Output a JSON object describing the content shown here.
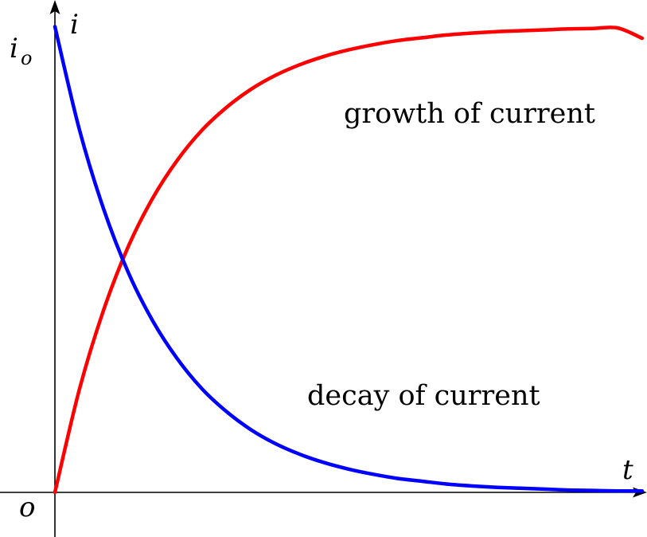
{
  "chart_data": {
    "type": "line",
    "title": "",
    "xlabel": "t",
    "ylabel": "i",
    "origin_label": "o",
    "y_max_label": {
      "main": "i",
      "sub": "o"
    },
    "xlim": [
      0,
      6.05
    ],
    "ylim": [
      0,
      1.04
    ],
    "grid": false,
    "legend": "none",
    "series": [
      {
        "name": "growth of current",
        "color": "#ff0000",
        "x": [
          0,
          0.25,
          0.5,
          0.75,
          1.0,
          1.25,
          1.5,
          1.75,
          2.0,
          2.25,
          2.5,
          2.75,
          3.0,
          3.25,
          3.5,
          3.75,
          4.0,
          4.25,
          4.5,
          4.75,
          5.0,
          5.25,
          5.5,
          5.75,
          6.0
        ],
        "values": [
          0,
          0.221,
          0.393,
          0.528,
          0.632,
          0.713,
          0.777,
          0.826,
          0.865,
          0.895,
          0.918,
          0.936,
          0.95,
          0.961,
          0.97,
          0.976,
          0.982,
          0.986,
          0.989,
          0.991,
          0.993,
          0.995,
          0.996,
          0.997,
          0.975
        ]
      },
      {
        "name": "decay of current",
        "color": "#0000ff",
        "x": [
          0,
          0.25,
          0.5,
          0.75,
          1.0,
          1.25,
          1.5,
          1.75,
          2.0,
          2.25,
          2.5,
          2.75,
          3.0,
          3.25,
          3.5,
          3.75,
          4.0,
          4.25,
          4.5,
          4.75,
          5.0,
          5.25,
          5.5,
          5.75,
          6.0
        ],
        "values": [
          1.0,
          0.779,
          0.607,
          0.472,
          0.368,
          0.287,
          0.223,
          0.174,
          0.135,
          0.105,
          0.082,
          0.064,
          0.05,
          0.039,
          0.03,
          0.024,
          0.018,
          0.014,
          0.011,
          0.009,
          0.007,
          0.005,
          0.004,
          0.003,
          0.003
        ]
      }
    ],
    "annotations": [
      {
        "text": "growth of current",
        "series": "growth of current"
      },
      {
        "text": "decay of current",
        "series": "decay of current"
      }
    ]
  }
}
